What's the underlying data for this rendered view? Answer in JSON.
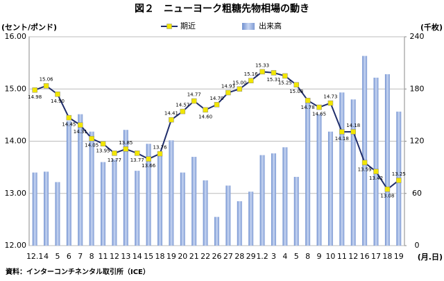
{
  "chart_data": {
    "type": "bar_line",
    "title": "図２　ニューヨーク粗糖先物相場の動き",
    "y_label": "(セント/ポンド)",
    "y2_label": "(千枚)",
    "x_label": "(月.日)",
    "source": "資料：インターコンチネンタル取引所（ICE）",
    "categories": [
      "12.1",
      "4",
      "5",
      "6",
      "7",
      "8",
      "11",
      "12",
      "13",
      "14",
      "15",
      "18",
      "19",
      "20",
      "21",
      "22",
      "26",
      "27",
      "28",
      "29",
      "1.2",
      "3",
      "4",
      "5",
      "8",
      "9",
      "10",
      "11",
      "12",
      "16",
      "17",
      "18",
      "19"
    ],
    "series": [
      {
        "name": "期近",
        "type": "line",
        "color": "#1f2d6b",
        "marker_color": "#f2e600",
        "values": [
          14.98,
          15.06,
          14.9,
          14.45,
          14.31,
          14.05,
          13.95,
          13.77,
          13.85,
          13.77,
          13.66,
          13.76,
          14.41,
          14.57,
          14.77,
          14.6,
          14.7,
          14.93,
          15.0,
          15.16,
          15.33,
          15.31,
          15.25,
          15.08,
          14.78,
          14.65,
          14.73,
          14.18,
          14.18,
          13.59,
          13.42,
          13.08,
          13.25
        ],
        "value_labels": [
          "14.98",
          "15.06",
          "14.90",
          "14.45",
          "14.31",
          "14.05",
          "13.95",
          "13.77",
          "13.85",
          "13.77",
          "13.66",
          "13.76",
          "14.41",
          "14.57",
          "14.77",
          "14.60",
          "14.70",
          "14.93",
          "15.00",
          "15.16",
          "15.33",
          "15.31",
          "15.25",
          "15.08",
          "14.78",
          "14.65",
          "14.73",
          "14.18",
          "14.18",
          "13.59",
          "13.42",
          "13.08",
          "13.25"
        ]
      },
      {
        "name": "出来高",
        "type": "bar",
        "axis": "y2",
        "color": "#9ab0de",
        "values": [
          84,
          85,
          73,
          143,
          151,
          131,
          96,
          99,
          133,
          86,
          117,
          105,
          121,
          84,
          102,
          75,
          33,
          69,
          51,
          62,
          104,
          106,
          113,
          79,
          167,
          151,
          131,
          176,
          168,
          218,
          193,
          197,
          154
        ]
      }
    ],
    "ylim": [
      12,
      16
    ],
    "yticks": [
      {
        "value": 12,
        "label": "12.00"
      },
      {
        "value": 13,
        "label": "13.00"
      },
      {
        "value": 14,
        "label": "14.00"
      },
      {
        "value": 15,
        "label": "15.00"
      },
      {
        "value": 16,
        "label": "16.00"
      }
    ],
    "y2lim": [
      0,
      240
    ],
    "y2ticks": [
      0,
      60,
      120,
      180,
      240
    ],
    "grid": true
  }
}
